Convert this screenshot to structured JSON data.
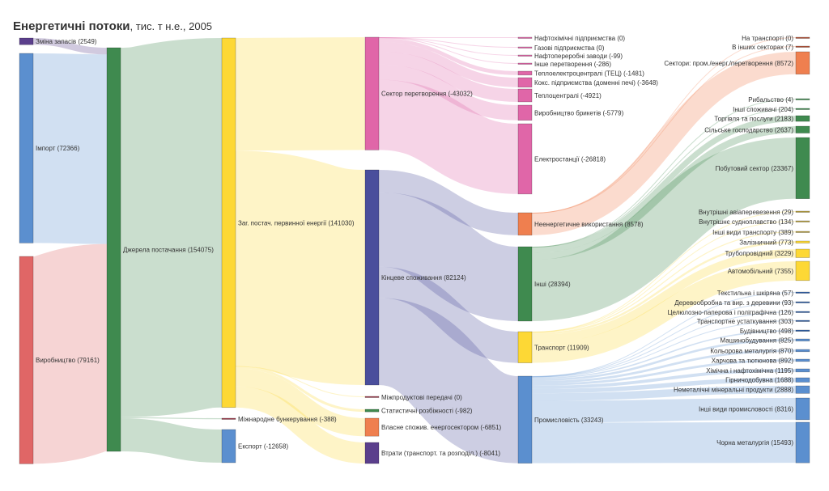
{
  "title": {
    "main": "Енергетичні потоки",
    "sub": ", тис. т н.е., 2005"
  },
  "nodes": [
    {
      "label": "Зміна запасів (2549)",
      "value": 2549,
      "color": "#5b3f8c"
    },
    {
      "label": "Імпорт (72366)",
      "value": 72366,
      "color": "#5b8fcf"
    },
    {
      "label": "Виробництво (79161)",
      "value": 79161,
      "color": "#e06666"
    },
    {
      "label": "Джерела постачання (154075)",
      "value": 154075,
      "color": "#3f8a4f"
    },
    {
      "label": "Заг. постач. первинної енергії (141030)",
      "value": 141030,
      "color": "#fdd835"
    },
    {
      "label": "Міжнародне бункерування (-388)",
      "value": -388,
      "color": "#a04050"
    },
    {
      "label": "Експорт (-12658)",
      "value": -12658,
      "color": "#5b8fcf"
    },
    {
      "label": "Сектор перетворення (-43032)",
      "value": -43032,
      "color": "#e066a8"
    },
    {
      "label": "Кінцеве споживання (82124)",
      "value": 82124,
      "color": "#4a4e9c"
    },
    {
      "label": "Міжпродуктові передачі (0)",
      "value": 0,
      "color": "#a04050"
    },
    {
      "label": "Статистичні розбіжності (-982)",
      "value": -982,
      "color": "#3f8a4f"
    },
    {
      "label": "Власне спожив. енергосектором (-6851)",
      "value": -6851,
      "color": "#ef7f4f"
    },
    {
      "label": "Втрати (транспорт. та розподіл.) (-8041)",
      "value": -8041,
      "color": "#5b3f8c"
    },
    {
      "label": "Нафтохімічні підприємства (0)",
      "value": 0,
      "color": "#e066a8"
    },
    {
      "label": "Газові підприємства (0)",
      "value": 0,
      "color": "#e066a8"
    },
    {
      "label": "Нафтопереробні заводи (-99)",
      "value": -99,
      "color": "#e066a8"
    },
    {
      "label": "Інше перетворення (-286)",
      "value": -286,
      "color": "#e066a8"
    },
    {
      "label": "Теплоелектроцентралі (ТЕЦ) (-1481)",
      "value": -1481,
      "color": "#e066a8"
    },
    {
      "label": "Кокс. підприємства (доменні печі) (-3648)",
      "value": -3648,
      "color": "#e066a8"
    },
    {
      "label": "Теплоцентралі (-4921)",
      "value": -4921,
      "color": "#e066a8"
    },
    {
      "label": "Виробництво брикетів (-5779)",
      "value": -5779,
      "color": "#e066a8"
    },
    {
      "label": "Електростанції (-26818)",
      "value": -26818,
      "color": "#e066a8"
    },
    {
      "label": "Неенергетичне використання (8578)",
      "value": 8578,
      "color": "#ef7f4f"
    },
    {
      "label": "Інші (28394)",
      "value": 28394,
      "color": "#3f8a4f"
    },
    {
      "label": "Транспорт (11909)",
      "value": 11909,
      "color": "#fdd835"
    },
    {
      "label": "Промисловість (33243)",
      "value": 33243,
      "color": "#5b8fcf"
    },
    {
      "label": "На транспорті (0)",
      "value": 0,
      "color": "#b5553a"
    },
    {
      "label": "В інших секторах (7)",
      "value": 7,
      "color": "#b5553a"
    },
    {
      "label": "Сектори: пром./енерг./перетворення (8572)",
      "value": 8572,
      "color": "#ef7f4f"
    },
    {
      "label": "Рибальство (4)",
      "value": 4,
      "color": "#3f8a4f"
    },
    {
      "label": "Інші споживачі (204)",
      "value": 204,
      "color": "#3f8a4f"
    },
    {
      "label": "Торгівля та послуги (2183)",
      "value": 2183,
      "color": "#3f8a4f"
    },
    {
      "label": "Сільське господарство (2637)",
      "value": 2637,
      "color": "#3f8a4f"
    },
    {
      "label": "Побутовий сектор (23367)",
      "value": 23367,
      "color": "#3f8a4f"
    },
    {
      "label": "Внутрішні авіаперевезення (29)",
      "value": 29,
      "color": "#b8a040"
    },
    {
      "label": "Внутрішнє судноплавство (134)",
      "value": 134,
      "color": "#b8a040"
    },
    {
      "label": "Інші види транспорту (389)",
      "value": 389,
      "color": "#b8a040"
    },
    {
      "label": "Залізничний (773)",
      "value": 773,
      "color": "#fdd835"
    },
    {
      "label": "Трубопровідний (3229)",
      "value": 3229,
      "color": "#fdd835"
    },
    {
      "label": "Автомобільний (7355)",
      "value": 7355,
      "color": "#fdd835"
    },
    {
      "label": "Текстильна і шкіряна (57)",
      "value": 57,
      "color": "#3060a8"
    },
    {
      "label": "Деревообробна та вир. з деревини (93)",
      "value": 93,
      "color": "#3060a8"
    },
    {
      "label": "Целюлозно-паперова і поліграфічна (126)",
      "value": 126,
      "color": "#3060a8"
    },
    {
      "label": "Транспортне устаткування (303)",
      "value": 303,
      "color": "#3060a8"
    },
    {
      "label": "Будівництво (498)",
      "value": 498,
      "color": "#3060a8"
    },
    {
      "label": "Машинобудування (825)",
      "value": 825,
      "color": "#5b8fcf"
    },
    {
      "label": "Кольорова металургія (870)",
      "value": 870,
      "color": "#5b8fcf"
    },
    {
      "label": "Харчова та тютюнова (892)",
      "value": 892,
      "color": "#5b8fcf"
    },
    {
      "label": "Хімічна і нафтохімічна (1195)",
      "value": 1195,
      "color": "#5b8fcf"
    },
    {
      "label": "Гірничодобувна (1688)",
      "value": 1688,
      "color": "#5b8fcf"
    },
    {
      "label": "Неметалічні мінеральні продукти (2888)",
      "value": 2888,
      "color": "#5b8fcf"
    },
    {
      "label": "Інші види промисловості (8316)",
      "value": 8316,
      "color": "#5b8fcf"
    },
    {
      "label": "Чорна металургія (15493)",
      "value": 15493,
      "color": "#5b8fcf"
    }
  ],
  "links": [
    [
      0,
      3,
      2549
    ],
    [
      1,
      3,
      72366
    ],
    [
      2,
      3,
      79161
    ],
    [
      3,
      4,
      141030
    ],
    [
      3,
      5,
      388
    ],
    [
      3,
      6,
      12658
    ],
    [
      4,
      7,
      43032
    ],
    [
      4,
      8,
      82124
    ],
    [
      4,
      9,
      0
    ],
    [
      4,
      10,
      982
    ],
    [
      4,
      11,
      6851
    ],
    [
      4,
      12,
      8041
    ],
    [
      7,
      13,
      0
    ],
    [
      7,
      14,
      0
    ],
    [
      7,
      15,
      99
    ],
    [
      7,
      16,
      286
    ],
    [
      7,
      17,
      1481
    ],
    [
      7,
      18,
      3648
    ],
    [
      7,
      19,
      4921
    ],
    [
      7,
      20,
      5779
    ],
    [
      7,
      21,
      26818
    ],
    [
      8,
      22,
      8578
    ],
    [
      8,
      23,
      28394
    ],
    [
      8,
      24,
      11909
    ],
    [
      8,
      25,
      33243
    ],
    [
      22,
      26,
      0
    ],
    [
      22,
      27,
      7
    ],
    [
      22,
      28,
      8572
    ],
    [
      23,
      29,
      4
    ],
    [
      23,
      30,
      204
    ],
    [
      23,
      31,
      2183
    ],
    [
      23,
      32,
      2637
    ],
    [
      23,
      33,
      23367
    ],
    [
      24,
      34,
      29
    ],
    [
      24,
      35,
      134
    ],
    [
      24,
      36,
      389
    ],
    [
      24,
      37,
      773
    ],
    [
      24,
      38,
      3229
    ],
    [
      24,
      39,
      7355
    ],
    [
      25,
      40,
      57
    ],
    [
      25,
      41,
      93
    ],
    [
      25,
      42,
      126
    ],
    [
      25,
      43,
      303
    ],
    [
      25,
      44,
      498
    ],
    [
      25,
      45,
      825
    ],
    [
      25,
      46,
      870
    ],
    [
      25,
      47,
      892
    ],
    [
      25,
      48,
      1195
    ],
    [
      25,
      49,
      1688
    ],
    [
      25,
      50,
      2888
    ],
    [
      25,
      51,
      8316
    ],
    [
      25,
      52,
      15493
    ]
  ]
}
